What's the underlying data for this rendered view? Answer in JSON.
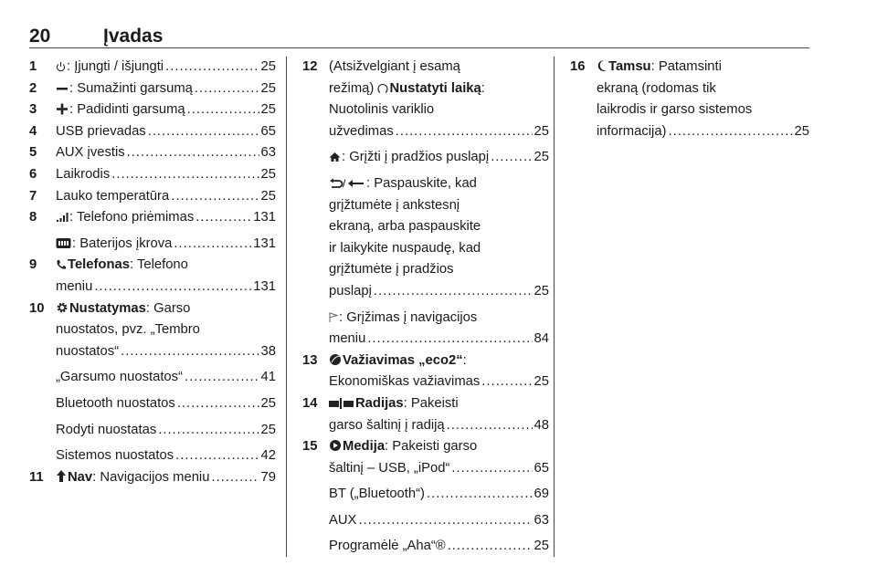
{
  "header": {
    "page_number": "20",
    "title": "Įvadas"
  },
  "icons": {
    "power": "power-icon",
    "minus": "minus-icon",
    "plus": "plus-icon",
    "signal": "signal-icon",
    "battery": "battery-icon",
    "phone": "phone-icon",
    "gear": "gear-icon",
    "nav": "navigation-icon",
    "clock": "clock-icon",
    "home": "home-icon",
    "back": "back-arrow-icon",
    "flag": "flag-icon",
    "eco": "eco-leaf-icon",
    "radio": "radio-icon",
    "media": "media-play-icon",
    "moon": "moon-icon"
  },
  "columns": [
    {
      "entries": [
        {
          "num": "1",
          "icon": "power",
          "text": ": Įjungti / išjungti",
          "page": "25"
        },
        {
          "num": "2",
          "icon": "minus",
          "text": ": Sumažinti garsumą",
          "page": "25"
        },
        {
          "num": "3",
          "icon": "plus",
          "text": ": Padidinti garsumą",
          "page": "25"
        },
        {
          "num": "4",
          "text": "USB prievadas",
          "page": "65"
        },
        {
          "num": "5",
          "text": "AUX įvestis",
          "page": "63"
        },
        {
          "num": "6",
          "text": "Laikrodis",
          "page": "25"
        },
        {
          "num": "7",
          "text": "Lauko temperatūra",
          "page": "25"
        },
        {
          "num": "8",
          "icon": "signal",
          "text": ": Telefono priėmimas",
          "page": "131"
        },
        {
          "sub": true,
          "icon": "battery",
          "text": ": Baterijos įkrova",
          "page": "131"
        },
        {
          "num": "9",
          "icon": "phone",
          "bold": "Telefonas",
          "text": ": Telefono",
          "more": [
            "meniu"
          ],
          "page": "131"
        },
        {
          "num": "10",
          "icon": "gear",
          "bold": "Nustatymas",
          "text": ": Garso",
          "more": [
            "nuostatos, pvz. „Tembro",
            "nuostatos“"
          ],
          "page": "38"
        },
        {
          "sub": true,
          "text": "„Garsumo nuostatos“",
          "page": "41"
        },
        {
          "sub": true,
          "text": "Bluetooth nuostatos",
          "page": "25"
        },
        {
          "sub": true,
          "text": "Rodyti nuostatas",
          "page": "25"
        },
        {
          "sub": true,
          "text": "Sistemos nuostatos",
          "page": "42"
        },
        {
          "num": "11",
          "icon": "nav",
          "bold": "Nav",
          "text": ": Navigacijos meniu",
          "page": "79"
        }
      ]
    },
    {
      "entries": [
        {
          "num": "12",
          "text": "(Atsižvelgiant į esamą",
          "more": [
            "režimą) |Nustatyti laiką|:",
            "Nuotolinis variklio",
            "užvedimas"
          ],
          "page": "25"
        },
        {
          "sub": true,
          "icon": "home",
          "text": ": Grįžti į pradžios puslapį",
          "page": "25"
        },
        {
          "sub": true,
          "icon": "back",
          "text": ": Paspauskite, kad",
          "more": [
            "grįžtumėte į ankstesnį",
            "ekraną, arba paspauskite",
            "ir laikykite nuspaudę, kad",
            "grįžtumėte į pradžios",
            "puslapį"
          ],
          "page": "25"
        },
        {
          "sub": true,
          "icon": "flag",
          "text": ": Grįžimas į navigacijos",
          "more": [
            "meniu"
          ],
          "page": "84"
        },
        {
          "num": "13",
          "icon": "eco",
          "bold": "Važiavimas „eco2“",
          "text": ":",
          "more": [
            "Ekonomiškas važiavimas"
          ],
          "page": "25"
        },
        {
          "num": "14",
          "icon": "radio",
          "bold": "Radijas",
          "text": ": Pakeisti",
          "more": [
            "garso šaltinį į radiją"
          ],
          "page": "48"
        },
        {
          "num": "15",
          "icon": "media",
          "bold": "Medija",
          "text": ": Pakeisti garso",
          "more": [
            "šaltinį – USB, „iPod“"
          ],
          "page": "65"
        },
        {
          "sub": true,
          "text": "BT („Bluetooth“)",
          "page": "69"
        },
        {
          "sub": true,
          "text": "AUX",
          "page": "63"
        },
        {
          "sub": true,
          "text": "Programėlė „Aha“®",
          "page": "25"
        }
      ]
    },
    {
      "entries": [
        {
          "num": "16",
          "icon": "moon",
          "bold": "Tamsu",
          "text": ": Patamsinti",
          "more": [
            "ekraną (rodomas tik",
            "laikrodis ir garso sistemos",
            "informacija)"
          ],
          "page": "25"
        }
      ]
    }
  ]
}
